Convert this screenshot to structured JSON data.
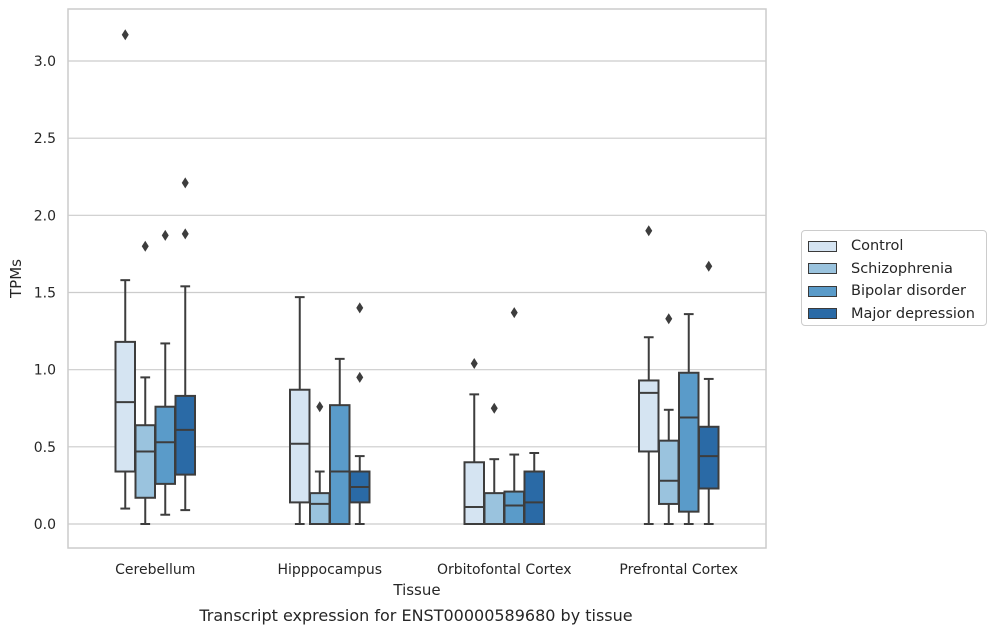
{
  "chart_data": {
    "type": "box",
    "caption": "Transcript expression for ENST00000589680 by tissue",
    "xlabel": "Tissue",
    "ylabel": "TPMs",
    "ylim": [
      -0.15,
      3.33
    ],
    "yticks": [
      "0.0",
      "0.5",
      "1.0",
      "1.5",
      "2.0",
      "2.5",
      "3.0"
    ],
    "grid": "horizontal",
    "legend_position": "right",
    "categories": [
      "Cerebellum",
      "Hipppocampus",
      "Orbitofontal Cortex",
      "Prefrontal Cortex"
    ],
    "series": [
      {
        "name": "Control",
        "color": "#d5e4f2",
        "boxes": [
          {
            "whislo": 0.1,
            "q1": 0.34,
            "med": 0.79,
            "q3": 1.18,
            "whishi": 1.58,
            "fliers": [
              3.17
            ]
          },
          {
            "whislo": 0.0,
            "q1": 0.14,
            "med": 0.52,
            "q3": 0.87,
            "whishi": 1.47,
            "fliers": []
          },
          {
            "whislo": 0.0,
            "q1": 0.0,
            "med": 0.11,
            "q3": 0.4,
            "whishi": 0.84,
            "fliers": [
              1.04
            ]
          },
          {
            "whislo": 0.0,
            "q1": 0.47,
            "med": 0.85,
            "q3": 0.93,
            "whishi": 1.21,
            "fliers": [
              1.9
            ]
          }
        ]
      },
      {
        "name": "Schizophrenia",
        "color": "#9ac3de",
        "boxes": [
          {
            "whislo": 0.0,
            "q1": 0.17,
            "med": 0.47,
            "q3": 0.64,
            "whishi": 0.95,
            "fliers": [
              1.8
            ]
          },
          {
            "whislo": 0.0,
            "q1": 0.0,
            "med": 0.13,
            "q3": 0.2,
            "whishi": 0.34,
            "fliers": [
              0.76
            ]
          },
          {
            "whislo": 0.0,
            "q1": 0.0,
            "med": 0.0,
            "q3": 0.2,
            "whishi": 0.42,
            "fliers": [
              0.75
            ]
          },
          {
            "whislo": 0.0,
            "q1": 0.13,
            "med": 0.28,
            "q3": 0.54,
            "whishi": 0.74,
            "fliers": [
              1.33
            ]
          }
        ]
      },
      {
        "name": "Bipolar disorder",
        "color": "#5a9bc9",
        "boxes": [
          {
            "whislo": 0.06,
            "q1": 0.26,
            "med": 0.53,
            "q3": 0.76,
            "whishi": 1.17,
            "fliers": [
              1.87
            ]
          },
          {
            "whislo": 0.0,
            "q1": 0.0,
            "med": 0.34,
            "q3": 0.77,
            "whishi": 1.07,
            "fliers": []
          },
          {
            "whislo": 0.0,
            "q1": 0.0,
            "med": 0.12,
            "q3": 0.21,
            "whishi": 0.45,
            "fliers": [
              1.37
            ]
          },
          {
            "whislo": 0.0,
            "q1": 0.08,
            "med": 0.69,
            "q3": 0.98,
            "whishi": 1.36,
            "fliers": []
          }
        ]
      },
      {
        "name": "Major depression",
        "color": "#2a6aa6",
        "boxes": [
          {
            "whislo": 0.09,
            "q1": 0.32,
            "med": 0.61,
            "q3": 0.83,
            "whishi": 1.54,
            "fliers": [
              1.88,
              2.21
            ]
          },
          {
            "whislo": 0.0,
            "q1": 0.14,
            "med": 0.24,
            "q3": 0.34,
            "whishi": 0.44,
            "fliers": [
              0.95,
              1.4
            ]
          },
          {
            "whislo": 0.0,
            "q1": 0.0,
            "med": 0.14,
            "q3": 0.34,
            "whishi": 0.46,
            "fliers": []
          },
          {
            "whislo": 0.0,
            "q1": 0.23,
            "med": 0.44,
            "q3": 0.63,
            "whishi": 0.94,
            "fliers": [
              1.67
            ]
          }
        ]
      }
    ]
  }
}
